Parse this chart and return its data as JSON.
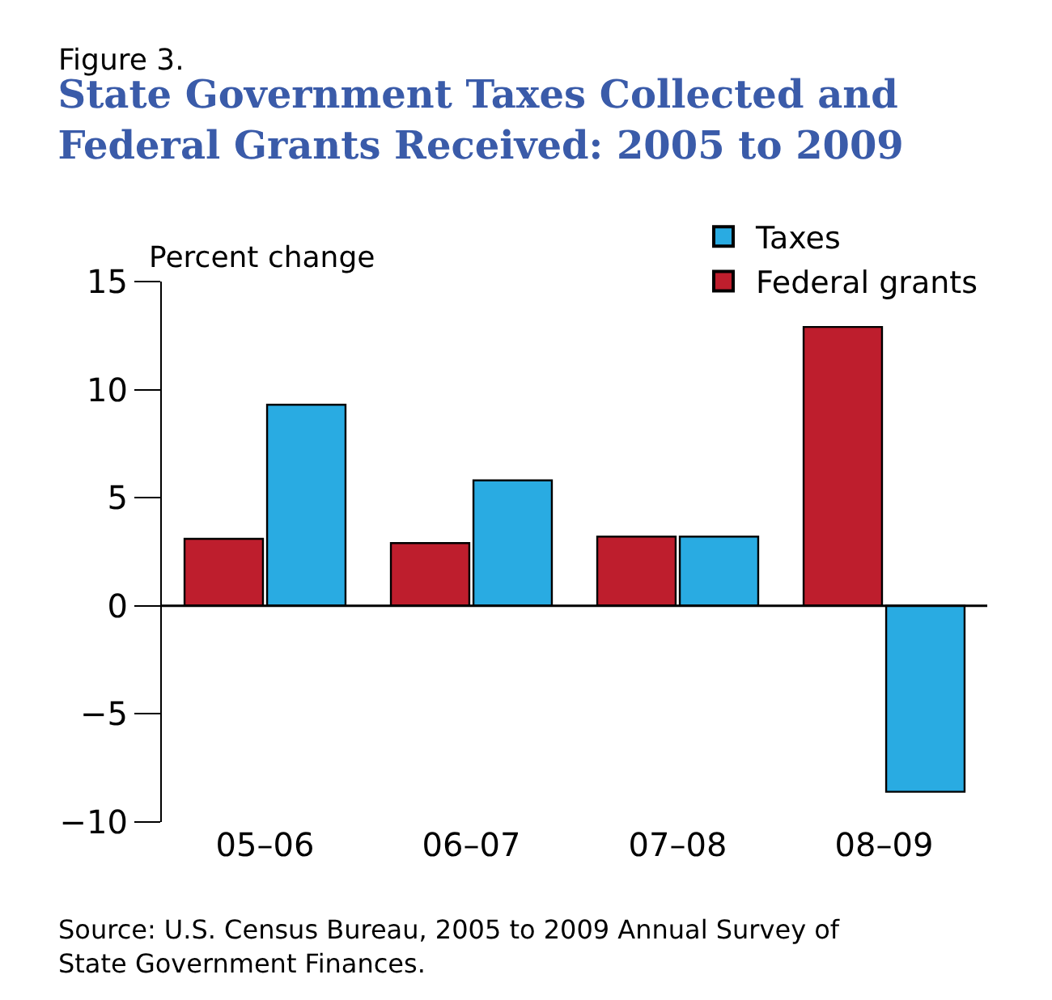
{
  "chart_data": {
    "type": "bar",
    "subtitle": "Figure 3.",
    "title": "State Government Taxes Collected and Federal Grants Received: 2005 to 2009",
    "ylabel": "Percent change",
    "categories": [
      "05–06",
      "06–07",
      "07–08",
      "08–09"
    ],
    "series": [
      {
        "name": "Federal grants",
        "color": "#be1e2d",
        "values": [
          3.1,
          2.9,
          3.2,
          12.9
        ]
      },
      {
        "name": "Taxes",
        "color": "#29abe2",
        "values": [
          9.3,
          5.8,
          3.2,
          -8.6
        ]
      }
    ],
    "ylim": [
      -10,
      15
    ],
    "yticks": [
      {
        "value": -10,
        "label": "−10"
      },
      {
        "value": -5,
        "label": "−5"
      },
      0,
      5,
      10,
      15
    ],
    "legend": "top right",
    "ref_lines": [
      {
        "axis": "y",
        "value": 0,
        "color": "#000000"
      }
    ],
    "annotations": [
      "Source: U.S. Census Bureau, 2005 to 2009 Annual Survey of State Government Finances."
    ]
  }
}
